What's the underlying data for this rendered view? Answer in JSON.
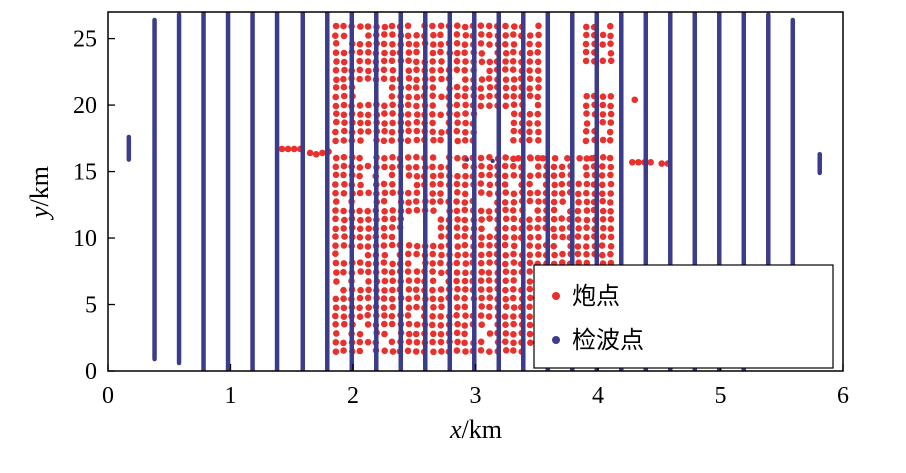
{
  "chart_data": {
    "type": "scatter",
    "xlabel_var": "x",
    "xlabel_unit": "/km",
    "ylabel_var": "y",
    "ylabel_unit": "/km",
    "xlim": [
      0,
      6
    ],
    "ylim": [
      0,
      27
    ],
    "x_ticks": [
      0,
      1,
      2,
      3,
      4,
      5,
      6
    ],
    "y_ticks": [
      0,
      5,
      10,
      15,
      20,
      25
    ],
    "legend_position": "bottom-right",
    "series": [
      {
        "name": "炮点",
        "color": "#e8312c",
        "grid": {
          "x_start": 1.86,
          "x_end": 4.16,
          "x_step": 0.066,
          "y_start": 1.5,
          "y_end": 26.0,
          "y_step": 0.66
        },
        "gaps": [
          {
            "x": [
              1.8,
              4.25
            ],
            "y": [
              16.3,
              17.3
            ]
          },
          {
            "x": [
              3.55,
              3.85
            ],
            "y": [
              16.0,
              26.5
            ]
          },
          {
            "x": [
              3.0,
              3.25
            ],
            "y": [
              17.0,
              19.5
            ]
          },
          {
            "x": [
              3.9,
              4.2
            ],
            "y": [
              21.0,
              23.0
            ]
          },
          {
            "x": [
              2.4,
              2.7
            ],
            "y": [
              10.0,
              11.5
            ]
          },
          {
            "x": [
              2.05,
              2.3
            ],
            "y": [
              20.0,
              21.5
            ]
          }
        ],
        "extra_points": [
          [
            1.42,
            16.7
          ],
          [
            1.47,
            16.7
          ],
          [
            1.52,
            16.7
          ],
          [
            1.57,
            16.7
          ],
          [
            1.65,
            16.4
          ],
          [
            1.7,
            16.3
          ],
          [
            1.75,
            16.4
          ],
          [
            1.8,
            16.5
          ],
          [
            3.35,
            16.0
          ],
          [
            3.45,
            16.0
          ],
          [
            3.55,
            16.0
          ],
          [
            3.65,
            16.0
          ],
          [
            3.75,
            16.0
          ],
          [
            3.85,
            16.0
          ],
          [
            3.95,
            16.0
          ],
          [
            4.28,
            15.7
          ],
          [
            4.33,
            15.7
          ],
          [
            4.38,
            15.7
          ],
          [
            4.43,
            15.7
          ],
          [
            4.52,
            15.6
          ],
          [
            4.57,
            15.6
          ],
          [
            4.3,
            20.4
          ]
        ]
      },
      {
        "name": "检波点",
        "color": "#3c3c8c",
        "lines": [
          {
            "x": 0.38,
            "y": [
              0.9,
              26.4
            ]
          },
          {
            "x": 0.58,
            "y": [
              0.6,
              26.8
            ]
          },
          {
            "x": 0.78,
            "y": [
              0,
              27
            ]
          },
          {
            "x": 0.98,
            "y": [
              0,
              27
            ]
          },
          {
            "x": 1.18,
            "y": [
              0,
              27
            ]
          },
          {
            "x": 1.38,
            "y": [
              0,
              27
            ]
          },
          {
            "x": 1.59,
            "y": [
              0,
              27
            ]
          },
          {
            "x": 1.79,
            "y": [
              0,
              27
            ]
          },
          {
            "x": 1.99,
            "y": [
              0,
              27
            ]
          },
          {
            "x": 2.19,
            "y": [
              0,
              27
            ]
          },
          {
            "x": 2.39,
            "y": [
              0,
              27
            ]
          },
          {
            "x": 2.59,
            "y": [
              0,
              27
            ]
          },
          {
            "x": 2.79,
            "y": [
              0,
              27
            ]
          },
          {
            "x": 2.99,
            "y": [
              0,
              27
            ]
          },
          {
            "x": 3.19,
            "y": [
              0,
              27
            ]
          },
          {
            "x": 3.39,
            "y": [
              0,
              27
            ]
          },
          {
            "x": 3.59,
            "y": [
              0,
              27
            ]
          },
          {
            "x": 3.79,
            "y": [
              0,
              27
            ]
          },
          {
            "x": 3.99,
            "y": [
              0,
              27
            ]
          },
          {
            "x": 4.19,
            "y": [
              0,
              27
            ]
          },
          {
            "x": 4.39,
            "y": [
              0,
              27
            ]
          },
          {
            "x": 4.59,
            "y": [
              0,
              27
            ]
          },
          {
            "x": 4.79,
            "y": [
              0,
              27
            ]
          },
          {
            "x": 4.99,
            "y": [
              0,
              27
            ]
          },
          {
            "x": 5.19,
            "y": [
              0,
              27
            ]
          },
          {
            "x": 5.39,
            "y": [
              0.5,
              26.8
            ]
          },
          {
            "x": 5.59,
            "y": [
              0.5,
              26.4
            ]
          },
          {
            "x": 0.17,
            "y": [
              15.9,
              17.6
            ]
          },
          {
            "x": 5.81,
            "y": [
              14.9,
              16.3
            ]
          }
        ],
        "extra_points": [
          [
            2.93,
            15.9
          ],
          [
            3.14,
            15.8
          ]
        ]
      }
    ]
  }
}
